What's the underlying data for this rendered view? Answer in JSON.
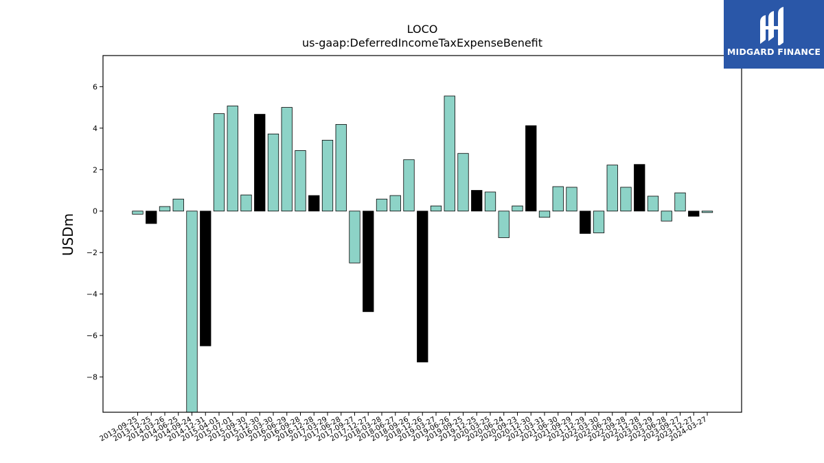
{
  "colors": {
    "bar_teal": "#8dd3c7",
    "bar_black": "#000000",
    "logo_bg": "#2a57a8"
  },
  "logo": {
    "text": "MIDGARD FINANCE",
    "icon": "midgard-logo-icon"
  },
  "chart_data": {
    "type": "bar",
    "title": "LOCO",
    "subtitle": "us-gaap:DeferredIncomeTaxExpenseBenefit",
    "ylabel": "USDm",
    "xlabel": "",
    "ylim": [
      -9.7,
      7.5
    ],
    "yticks": [
      6,
      4,
      2,
      0,
      -2,
      -4,
      -6,
      -8
    ],
    "ytick_labels": [
      "6",
      "4",
      "2",
      "0",
      "−2",
      "−4",
      "−6",
      "−8"
    ],
    "grid": false,
    "legend": "none",
    "categories": [
      "2013-09-25",
      "2013-12-25",
      "2014-03-26",
      "2014-06-25",
      "2014-09-24",
      "2014-12-31",
      "2015-04-01",
      "2015-07-01",
      "2015-09-30",
      "2015-12-30",
      "2016-03-30",
      "2016-06-29",
      "2016-09-28",
      "2016-12-28",
      "2017-03-29",
      "2017-06-28",
      "2017-09-27",
      "2017-12-27",
      "2018-03-28",
      "2018-06-27",
      "2018-09-26",
      "2018-12-26",
      "2019-03-27",
      "2019-06-26",
      "2019-09-25",
      "2019-12-25",
      "2020-03-25",
      "2020-06-24",
      "2020-09-23",
      "2020-12-30",
      "2021-03-31",
      "2021-06-30",
      "2021-09-29",
      "2021-12-29",
      "2022-03-30",
      "2022-06-29",
      "2022-09-28",
      "2022-12-28",
      "2023-03-29",
      "2023-06-28",
      "2023-09-27",
      "2023-12-27",
      "2024-03-27"
    ],
    "values": [
      -0.15,
      -0.6,
      0.22,
      0.58,
      -9.7,
      -6.5,
      4.7,
      5.07,
      0.78,
      4.67,
      3.72,
      5.0,
      2.92,
      0.75,
      3.42,
      4.18,
      -2.5,
      -4.85,
      0.58,
      0.75,
      2.48,
      -7.28,
      0.25,
      5.55,
      2.78,
      1.0,
      0.92,
      -1.28,
      0.25,
      4.12,
      -0.3,
      1.18,
      1.15,
      -1.08,
      -1.05,
      2.22,
      1.15,
      2.25,
      0.72,
      -0.48,
      0.88,
      -0.25,
      -0.07
    ],
    "highlight": [
      false,
      true,
      false,
      false,
      false,
      true,
      false,
      false,
      false,
      true,
      false,
      false,
      false,
      true,
      false,
      false,
      false,
      true,
      false,
      false,
      false,
      true,
      false,
      false,
      false,
      true,
      false,
      false,
      false,
      true,
      false,
      false,
      false,
      true,
      false,
      false,
      false,
      true,
      false,
      false,
      false,
      true,
      false
    ]
  }
}
